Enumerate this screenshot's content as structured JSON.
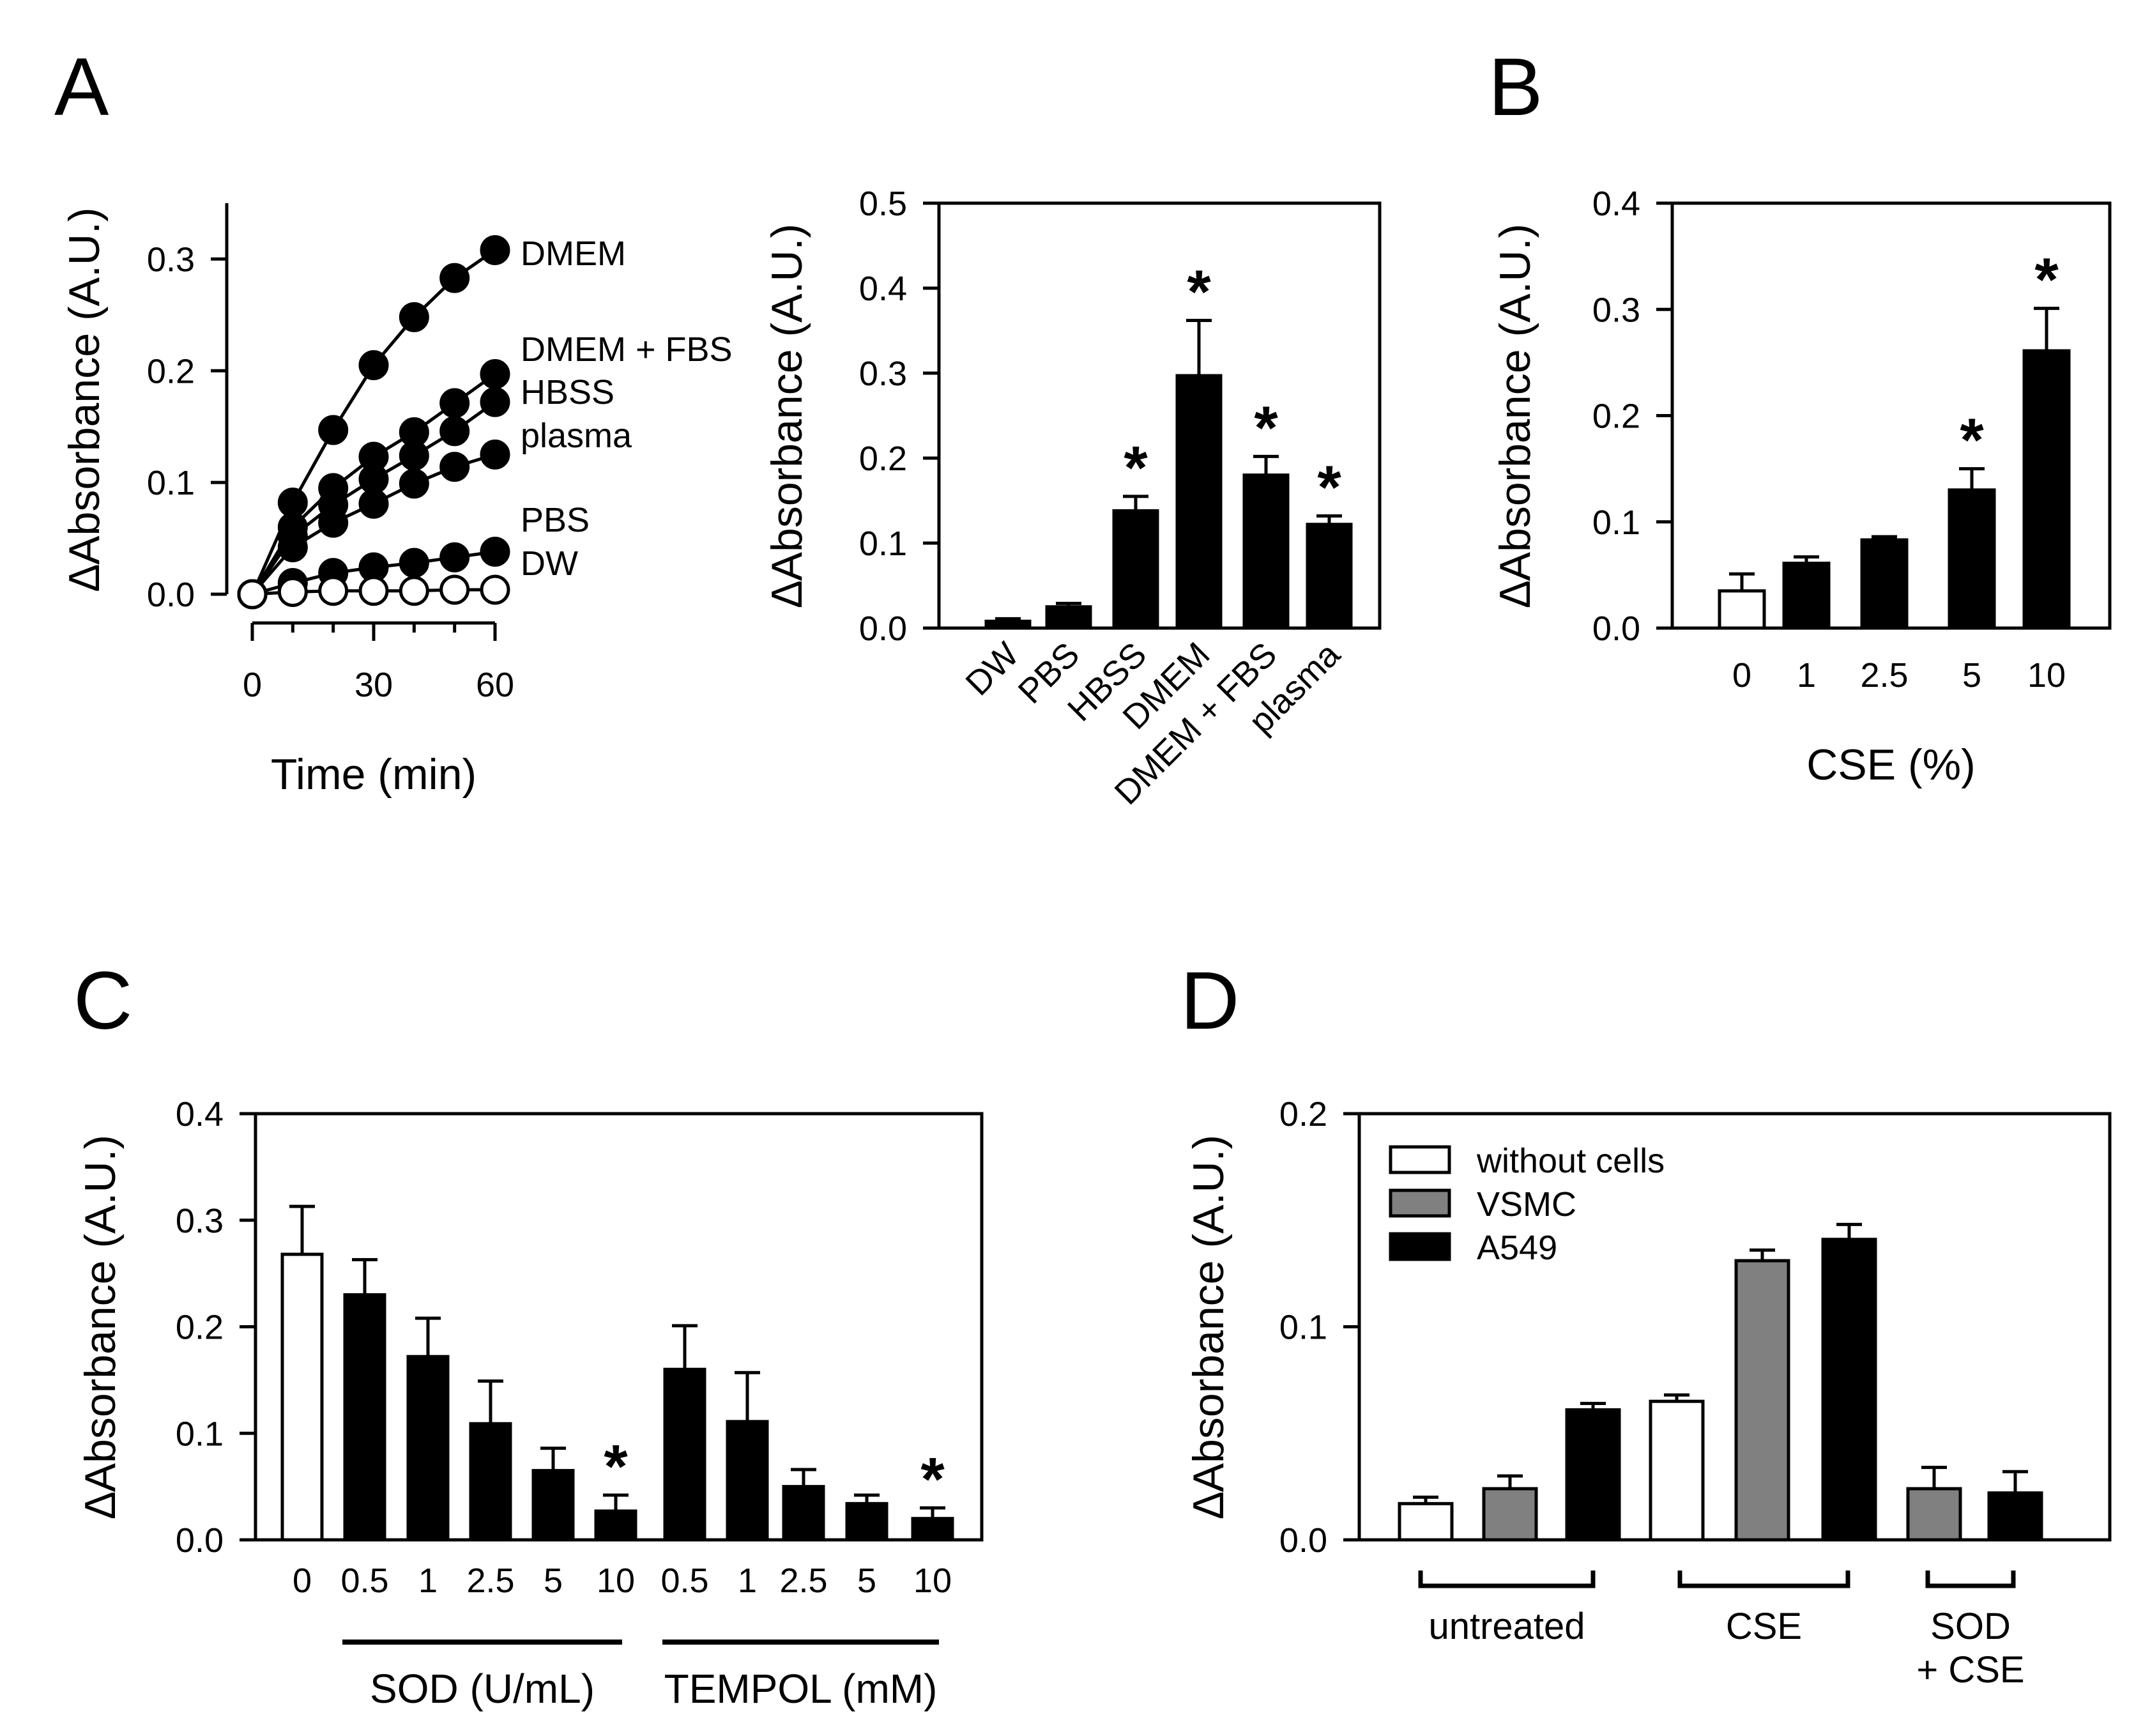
{
  "colors": {
    "black": "#000000",
    "white": "#ffffff",
    "gray": "#808080"
  },
  "panel_labels": [
    "A",
    "B",
    "C",
    "D"
  ],
  "chart_data": [
    {
      "id": "A-line",
      "type": "line",
      "xlabel": "Time (min)",
      "ylabel": "∆Absorbance (A.U.)",
      "xlim": [
        0,
        60
      ],
      "ylim": [
        0,
        0.35
      ],
      "xticks": [
        0,
        30,
        60
      ],
      "xtick_labels": [
        "0",
        "30",
        "60"
      ],
      "yticks": [
        0,
        0.1,
        0.2,
        0.3
      ],
      "ytick_labels": [
        "0.0",
        "0.1",
        "0.2",
        "0.3"
      ],
      "x": [
        0,
        10,
        20,
        30,
        40,
        50,
        60
      ],
      "series": [
        {
          "name": "DMEM",
          "marker": "filled",
          "values": [
            0,
            0.082,
            0.147,
            0.205,
            0.248,
            0.283,
            0.308
          ]
        },
        {
          "name": "DMEM + FBS",
          "marker": "filled",
          "values": [
            0,
            0.06,
            0.095,
            0.123,
            0.145,
            0.171,
            0.197
          ]
        },
        {
          "name": "HBSS",
          "marker": "filled",
          "values": [
            0,
            0.052,
            0.08,
            0.103,
            0.124,
            0.146,
            0.172
          ]
        },
        {
          "name": "plasma",
          "marker": "filled",
          "values": [
            0,
            0.042,
            0.064,
            0.081,
            0.099,
            0.114,
            0.125
          ]
        },
        {
          "name": "PBS",
          "marker": "filled",
          "values": [
            0,
            0.01,
            0.019,
            0.024,
            0.028,
            0.033,
            0.038
          ]
        },
        {
          "name": "DW",
          "marker": "open",
          "values": [
            0,
            0.002,
            0.003,
            0.003,
            0.003,
            0.004,
            0.004
          ]
        }
      ]
    },
    {
      "id": "A-bar",
      "type": "bar",
      "ylabel": "∆Absorbance (A.U.)",
      "ylim": [
        0,
        0.5
      ],
      "yticks": [
        0,
        0.1,
        0.2,
        0.3,
        0.4,
        0.5
      ],
      "ytick_labels": [
        "0.0",
        "0.1",
        "0.2",
        "0.3",
        "0.4",
        "0.5"
      ],
      "categories": [
        "DW",
        "PBS",
        "HBSS",
        "DMEM",
        "DMEM + FBS",
        "plasma"
      ],
      "values": [
        0.008,
        0.025,
        0.138,
        0.297,
        0.18,
        0.122
      ],
      "errors": [
        0.003,
        0.004,
        0.017,
        0.065,
        0.022,
        0.01
      ],
      "fills": [
        "black",
        "black",
        "black",
        "black",
        "black",
        "black"
      ],
      "significant": [
        false,
        false,
        true,
        true,
        true,
        true
      ],
      "sig_mark": "*"
    },
    {
      "id": "B",
      "type": "bar",
      "xlabel": "CSE (%)",
      "ylabel": "∆Absorbance (A.U.)",
      "ylim": [
        0,
        0.4
      ],
      "yticks": [
        0,
        0.1,
        0.2,
        0.3,
        0.4
      ],
      "ytick_labels": [
        "0.0",
        "0.1",
        "0.2",
        "0.3",
        "0.4"
      ],
      "categories": [
        "0",
        "1",
        "2.5",
        "5",
        "10"
      ],
      "values": [
        0.035,
        0.061,
        0.083,
        0.13,
        0.261
      ],
      "errors": [
        0.016,
        0.006,
        0.003,
        0.02,
        0.04
      ],
      "fills": [
        "white",
        "black",
        "black",
        "black",
        "black"
      ],
      "significant": [
        false,
        false,
        false,
        true,
        true
      ],
      "sig_mark": "*"
    },
    {
      "id": "C",
      "type": "bar",
      "ylabel": "∆Absorbance (A.U.)",
      "ylim": [
        0,
        0.4
      ],
      "yticks": [
        0,
        0.1,
        0.2,
        0.3,
        0.4
      ],
      "ytick_labels": [
        "0.0",
        "0.1",
        "0.2",
        "0.3",
        "0.4"
      ],
      "categories": [
        "0",
        "0.5",
        "1",
        "2.5",
        "5",
        "10",
        "0.5",
        "1",
        "2.5",
        "5",
        "10"
      ],
      "values": [
        0.268,
        0.23,
        0.172,
        0.109,
        0.065,
        0.027,
        0.16,
        0.111,
        0.05,
        0.034,
        0.02
      ],
      "errors": [
        0.045,
        0.033,
        0.036,
        0.04,
        0.021,
        0.015,
        0.041,
        0.046,
        0.016,
        0.008,
        0.01
      ],
      "fills": [
        "white",
        "black",
        "black",
        "black",
        "black",
        "black",
        "black",
        "black",
        "black",
        "black",
        "black"
      ],
      "significant": [
        false,
        false,
        false,
        false,
        false,
        true,
        false,
        false,
        false,
        false,
        true
      ],
      "sig_mark": "*",
      "groups": [
        {
          "label": "SOD (U/mL)",
          "from": 1,
          "to": 5
        },
        {
          "label": "TEMPOL (mM)",
          "from": 6,
          "to": 10
        }
      ]
    },
    {
      "id": "D",
      "type": "bar",
      "ylabel": "∆Absorbance (A.U.)",
      "ylim": [
        0,
        0.2
      ],
      "yticks": [
        0,
        0.1,
        0.2
      ],
      "ytick_labels": [
        "0.0",
        "0.1",
        "0.2"
      ],
      "legend_position": "top-left",
      "series": [
        {
          "name": "without cells",
          "fill": "white",
          "values": [
            0.017,
            0.065,
            null
          ],
          "errors": [
            0.003,
            0.003,
            null
          ]
        },
        {
          "name": "VSMC",
          "fill": "gray",
          "values": [
            0.024,
            0.131,
            0.024
          ],
          "errors": [
            0.006,
            0.005,
            0.01
          ]
        },
        {
          "name": "A549",
          "fill": "black",
          "values": [
            0.061,
            0.141,
            0.022
          ],
          "errors": [
            0.003,
            0.007,
            0.01
          ]
        }
      ],
      "groups": [
        {
          "label_lines": [
            "untreated"
          ]
        },
        {
          "label_lines": [
            "CSE"
          ]
        },
        {
          "label_lines": [
            "SOD",
            "+ CSE"
          ]
        }
      ]
    }
  ]
}
